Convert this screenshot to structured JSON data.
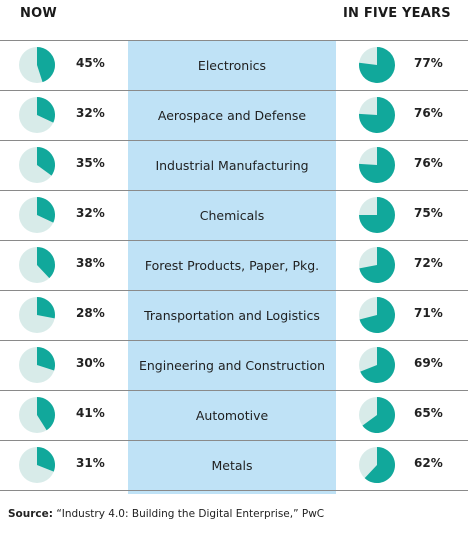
{
  "headers": {
    "now": "NOW",
    "five": "IN FIVE YEARS"
  },
  "colors": {
    "filled": "#11a89b",
    "empty": "#d8ebe9",
    "band": "#bfe2f6"
  },
  "chart_data": {
    "type": "pie",
    "series": [
      {
        "name": "NOW",
        "values": [
          45,
          32,
          35,
          32,
          38,
          28,
          30,
          41,
          31
        ]
      },
      {
        "name": "IN FIVE YEARS",
        "values": [
          77,
          76,
          76,
          75,
          72,
          71,
          69,
          65,
          62
        ]
      }
    ],
    "categories": [
      "Electronics",
      "Aerospace and Defense",
      "Industrial Manufacturing",
      "Chemicals",
      "Forest Products, Paper, Pkg.",
      "Transportation and Logistics",
      "Engineering and Construction",
      "Automotive",
      "Metals"
    ],
    "labels_now": [
      "45%",
      "32%",
      "35%",
      "32%",
      "38%",
      "28%",
      "30%",
      "41%",
      "31%"
    ],
    "labels_five": [
      "77%",
      "76%",
      "76%",
      "75%",
      "72%",
      "71%",
      "69%",
      "65%",
      "62%"
    ]
  },
  "source": {
    "label": "Source:",
    "text": " “Industry 4.0: Building the Digital Enterprise,” PwC"
  }
}
